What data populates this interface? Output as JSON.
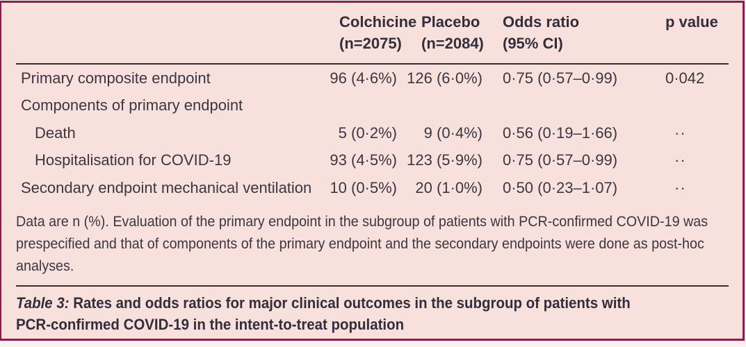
{
  "colors": {
    "background_pink": "#f8e0dc",
    "frame_border": "#87204a",
    "rule_line": "#3c2a33",
    "text": "#3b3642"
  },
  "table": {
    "header": {
      "colchicine": {
        "line1": "Colchicine",
        "line2": "(n=2075)"
      },
      "placebo": {
        "line1": "Placebo",
        "line2": "(n=2084)"
      },
      "odds_ratio": {
        "line1": "Odds ratio",
        "line2": "(95% CI)"
      },
      "p_value": "p value"
    },
    "rows": [
      {
        "label": "Primary composite endpoint",
        "colchicine": "96 (4·6%)",
        "placebo": "126 (6·0%)",
        "odds_ratio": "0·75 (0·57–0·99)",
        "p_value": "0·042"
      },
      {
        "label": "Components of primary endpoint",
        "colchicine": "",
        "placebo": "",
        "odds_ratio": "",
        "p_value": ""
      },
      {
        "label": "Death",
        "colchicine": "5 (0·2%)",
        "placebo": "9 (0·4%)",
        "odds_ratio": "0·56 (0·19–1·66)",
        "p_value": "··"
      },
      {
        "label": "Hospitalisation for COVID-19",
        "colchicine": "93 (4·5%)",
        "placebo": "123 (5·9%)",
        "odds_ratio": "0·75 (0·57–0·99)",
        "p_value": "··"
      },
      {
        "label": "Secondary endpoint mechanical ventilation",
        "colchicine": "10 (0·5%)",
        "placebo": "20 (1·0%)",
        "odds_ratio": "0·50 (0·23–1·07)",
        "p_value": "··"
      }
    ],
    "footnote_lines": [
      "Data are n (%). Evaluation of the primary endpoint in the subgroup of patients with PCR-confirmed COVID-19 was",
      "prespecified and that of components of the primary endpoint and the secondary endpoints were done as post-hoc",
      "analyses."
    ],
    "caption": {
      "label": "Table 3:",
      "line1_rest": " Rates and odds ratios for major clinical outcomes in the subgroup of patients with",
      "line2": "PCR-confirmed COVID-19 in the intent-to-treat population"
    }
  }
}
